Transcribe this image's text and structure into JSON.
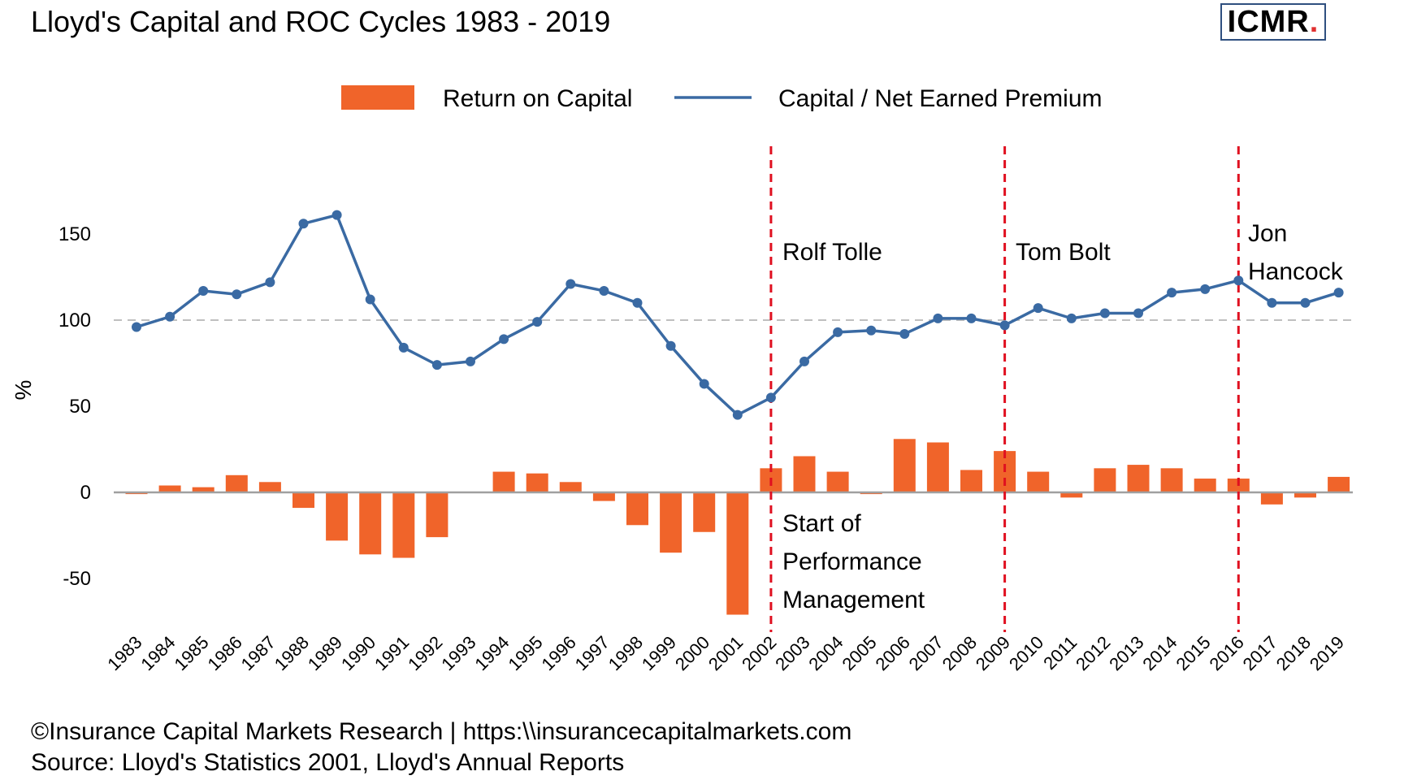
{
  "title": "Lloyd's Capital and ROC Cycles 1983 - 2019",
  "logo": {
    "text": "ICMR",
    "dot": "."
  },
  "footer": {
    "line1": "©Insurance Capital Markets Research | https:\\\\insurancecapitalmarkets.com",
    "line2": "Source: Lloyd's Statistics 2001, Lloyd's Annual Reports"
  },
  "colors": {
    "bar": "#f0642a",
    "line": "#3a6aa3",
    "marker": "#3a6aa3",
    "vline": "#e01020",
    "ref": "#bfbfbf",
    "axis": "#a0a0a0"
  },
  "chart_data": {
    "type": "bar+line",
    "ylabel": "%",
    "ylim": [
      -80,
      200
    ],
    "yticks": [
      -50,
      0,
      50,
      100,
      150
    ],
    "reference_line": 100,
    "categories": [
      "1983",
      "1984",
      "1985",
      "1986",
      "1987",
      "1988",
      "1989",
      "1990",
      "1991",
      "1992",
      "1993",
      "1994",
      "1995",
      "1996",
      "1997",
      "1998",
      "1999",
      "2000",
      "2001",
      "2002",
      "2003",
      "2004",
      "2005",
      "2006",
      "2007",
      "2008",
      "2009",
      "2010",
      "2011",
      "2012",
      "2013",
      "2014",
      "2015",
      "2016",
      "2017",
      "2018",
      "2019"
    ],
    "series": [
      {
        "name": "Return on Capital",
        "type": "bar",
        "values": [
          -1,
          4,
          3,
          10,
          6,
          -9,
          -28,
          -36,
          -38,
          -26,
          0,
          12,
          11,
          6,
          -5,
          -19,
          -35,
          -23,
          -71,
          14,
          21,
          12,
          -1,
          31,
          29,
          13,
          24,
          12,
          -3,
          14,
          16,
          14,
          8,
          8,
          -7,
          -3,
          9
        ]
      },
      {
        "name": "Capital / Net Earned Premium",
        "type": "line",
        "values": [
          96,
          102,
          117,
          115,
          122,
          156,
          161,
          112,
          84,
          74,
          76,
          89,
          99,
          121,
          117,
          110,
          85,
          63,
          45,
          55,
          76,
          93,
          94,
          92,
          101,
          101,
          97,
          107,
          101,
          104,
          104,
          116,
          118,
          123,
          110,
          110,
          116
        ]
      }
    ],
    "annotations": [
      {
        "label": "Rolf Tolle",
        "at": "2002"
      },
      {
        "label": "Tom Bolt",
        "at": "2009"
      },
      {
        "label": "Jon\nHancock",
        "at": "2016"
      },
      {
        "label": "Start of\nPerformance\nManagement",
        "at": "2002"
      }
    ]
  }
}
